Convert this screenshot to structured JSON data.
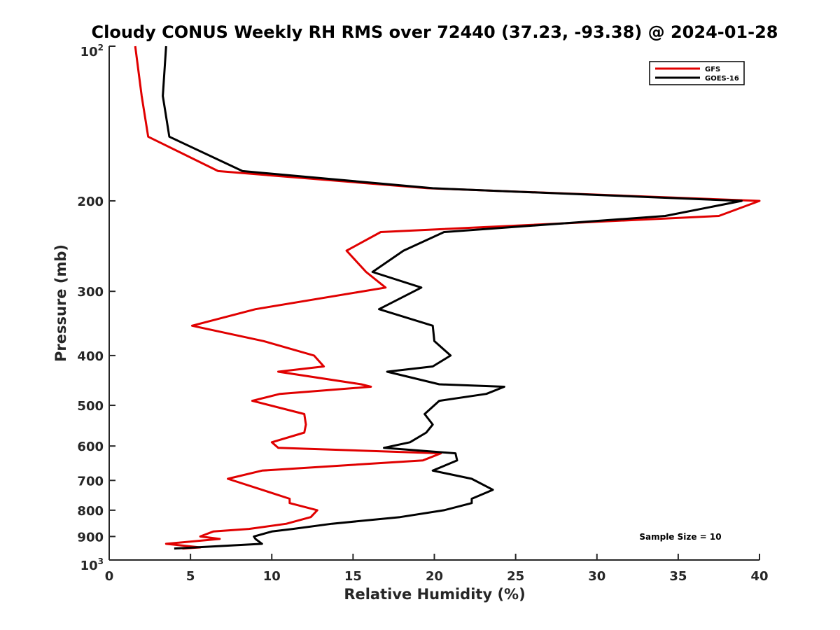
{
  "chart_data": {
    "type": "line",
    "title": "Cloudy CONUS Weekly RH RMS over 72440 (37.23, -93.38) @ 2024-01-28",
    "xlabel": "Relative Humidity (%)",
    "ylabel": "Pressure (mb)",
    "xlim": [
      0,
      40
    ],
    "ylim": [
      100,
      1000
    ],
    "yscale": "log",
    "y_reversed": true,
    "grid": false,
    "legend_position": "top-right",
    "x_ticks": [
      "0",
      "5",
      "10",
      "15",
      "20",
      "25",
      "30",
      "35",
      "40"
    ],
    "y_ticks": [
      {
        "value": 100,
        "base": "10",
        "exp": "2"
      },
      {
        "value": 200,
        "label": "200"
      },
      {
        "value": 300,
        "label": "300"
      },
      {
        "value": 400,
        "label": "400"
      },
      {
        "value": 500,
        "label": "500"
      },
      {
        "value": 600,
        "label": "600"
      },
      {
        "value": 700,
        "label": "700"
      },
      {
        "value": 800,
        "label": "800"
      },
      {
        "value": 900,
        "label": "900"
      },
      {
        "value": 1000,
        "base": "10",
        "exp": "3"
      }
    ],
    "series": [
      {
        "name": "GFS",
        "color": "#e00000",
        "points": [
          [
            1.6,
            100
          ],
          [
            2.0,
            125
          ],
          [
            2.4,
            150
          ],
          [
            6.7,
            175
          ],
          [
            19.6,
            189
          ],
          [
            40.0,
            200
          ],
          [
            37.5,
            214
          ],
          [
            16.7,
            230
          ],
          [
            14.6,
            250
          ],
          [
            15.8,
            275
          ],
          [
            17.0,
            295
          ],
          [
            9.0,
            325
          ],
          [
            5.1,
            350
          ],
          [
            9.5,
            375
          ],
          [
            12.6,
            400
          ],
          [
            13.2,
            420
          ],
          [
            10.4,
            430
          ],
          [
            15.5,
            455
          ],
          [
            16.1,
            460
          ],
          [
            10.5,
            475
          ],
          [
            8.8,
            490
          ],
          [
            12.0,
            520
          ],
          [
            12.1,
            545
          ],
          [
            12.0,
            565
          ],
          [
            10.0,
            590
          ],
          [
            10.4,
            605
          ],
          [
            20.4,
            620
          ],
          [
            19.3,
            640
          ],
          [
            9.4,
            670
          ],
          [
            7.3,
            695
          ],
          [
            9.4,
            730
          ],
          [
            11.1,
            760
          ],
          [
            11.1,
            775
          ],
          [
            12.8,
            800
          ],
          [
            12.4,
            825
          ],
          [
            10.9,
            850
          ],
          [
            8.6,
            870
          ],
          [
            6.4,
            880
          ],
          [
            5.6,
            900
          ],
          [
            6.8,
            910
          ],
          [
            3.5,
            930
          ],
          [
            5.6,
            945
          ],
          [
            4.5,
            950
          ]
        ]
      },
      {
        "name": "GOES-16",
        "color": "#000000",
        "points": [
          [
            3.5,
            100
          ],
          [
            3.3,
            125
          ],
          [
            3.7,
            150
          ],
          [
            8.2,
            175
          ],
          [
            19.9,
            189
          ],
          [
            38.9,
            200
          ],
          [
            34.2,
            214
          ],
          [
            20.6,
            230
          ],
          [
            18.1,
            250
          ],
          [
            16.2,
            275
          ],
          [
            19.2,
            295
          ],
          [
            16.6,
            325
          ],
          [
            19.9,
            350
          ],
          [
            20.0,
            375
          ],
          [
            21.0,
            400
          ],
          [
            19.9,
            420
          ],
          [
            17.1,
            430
          ],
          [
            20.3,
            455
          ],
          [
            24.3,
            460
          ],
          [
            23.2,
            475
          ],
          [
            20.3,
            490
          ],
          [
            19.4,
            520
          ],
          [
            19.9,
            545
          ],
          [
            19.5,
            565
          ],
          [
            18.5,
            590
          ],
          [
            16.9,
            605
          ],
          [
            21.3,
            620
          ],
          [
            21.4,
            640
          ],
          [
            19.9,
            670
          ],
          [
            22.3,
            695
          ],
          [
            23.6,
            730
          ],
          [
            22.3,
            760
          ],
          [
            22.3,
            775
          ],
          [
            20.6,
            800
          ],
          [
            17.9,
            825
          ],
          [
            13.7,
            850
          ],
          [
            11.3,
            870
          ],
          [
            10.0,
            880
          ],
          [
            8.9,
            900
          ],
          [
            9.0,
            910
          ],
          [
            9.4,
            930
          ],
          [
            5.3,
            945
          ],
          [
            4.0,
            950
          ]
        ]
      }
    ],
    "annotation": "Sample Size = 10"
  }
}
